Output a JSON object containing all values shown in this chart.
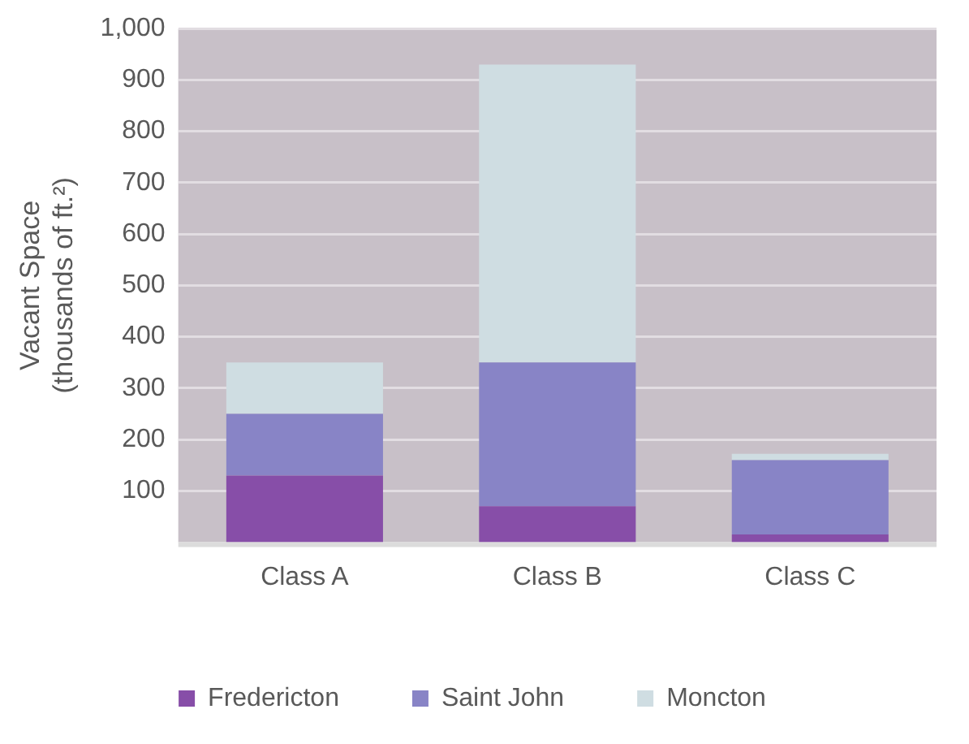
{
  "chart_data": {
    "type": "bar",
    "stacked": true,
    "ylabel": "Vacant Space\n(thousands of ft.²)",
    "categories": [
      "Class A",
      "Class B",
      "Class C"
    ],
    "series": [
      {
        "name": "Fredericton",
        "color": "#874ea8",
        "values": [
          130,
          70,
          15
        ]
      },
      {
        "name": "Saint John",
        "color": "#8884c6",
        "values": [
          120,
          280,
          145
        ]
      },
      {
        "name": "Moncton",
        "color": "#cfdde2",
        "values": [
          100,
          580,
          12
        ]
      }
    ],
    "ylim": [
      0,
      1000
    ],
    "yticks": [
      100,
      200,
      300,
      400,
      500,
      600,
      700,
      800,
      900,
      {
        "value": 1000,
        "label": "1,000"
      }
    ],
    "grid": "y",
    "legend": "bottom"
  }
}
